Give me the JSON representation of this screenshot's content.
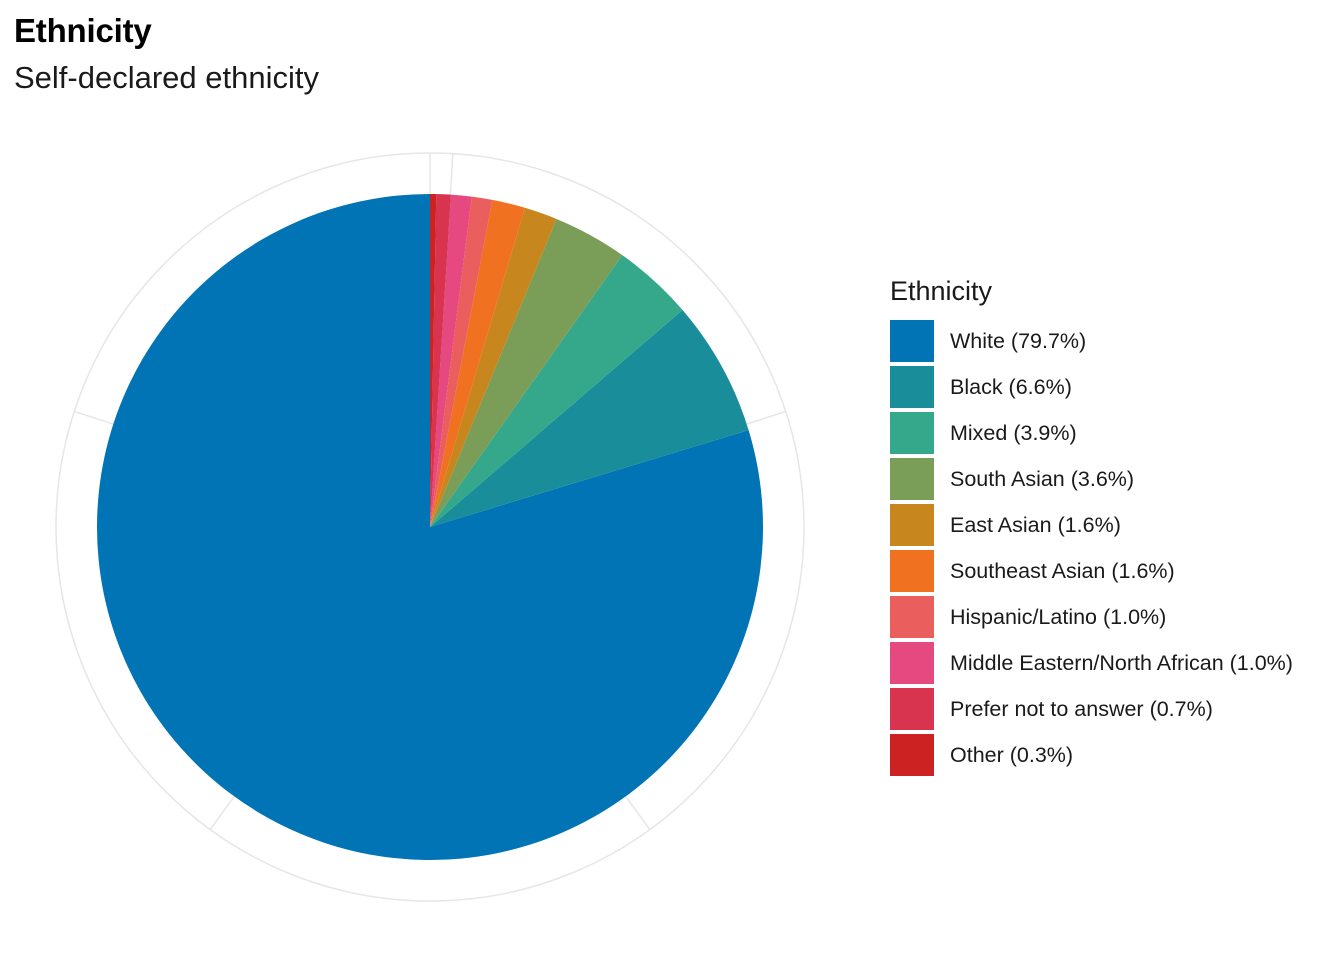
{
  "title": "Ethnicity",
  "subtitle": "Self-declared ethnicity",
  "legend_title": "Ethnicity",
  "chart_data": {
    "type": "pie",
    "title": "Ethnicity",
    "subtitle": "Self-declared ethnicity",
    "legend_title": "Ethnicity",
    "legend_position": "right",
    "start_angle": "12 o'clock",
    "direction": "counterclockwise",
    "slices": [
      {
        "label": "White (79.7%)",
        "category": "White",
        "value": 79.7,
        "color": "#0074b4"
      },
      {
        "label": "Black (6.6%)",
        "category": "Black",
        "value": 6.6,
        "color": "#1a8d9b"
      },
      {
        "label": "Mixed (3.9%)",
        "category": "Mixed",
        "value": 3.9,
        "color": "#35a88b"
      },
      {
        "label": "South Asian (3.6%)",
        "category": "South Asian",
        "value": 3.6,
        "color": "#7a9e58"
      },
      {
        "label": "East Asian (1.6%)",
        "category": "East Asian",
        "value": 1.6,
        "color": "#c8861f"
      },
      {
        "label": "Southeast Asian (1.6%)",
        "category": "Southeast Asian",
        "value": 1.6,
        "color": "#f07221"
      },
      {
        "label": "Hispanic/Latino (1.0%)",
        "category": "Hispanic/Latino",
        "value": 1.0,
        "color": "#eb5e5e"
      },
      {
        "label": "Middle Eastern/North African (1.0%)",
        "category": "Middle Eastern/North African",
        "value": 1.0,
        "color": "#e5497f"
      },
      {
        "label": "Prefer not to answer (0.7%)",
        "category": "Prefer not to answer",
        "value": 0.7,
        "color": "#d8334f"
      },
      {
        "label": "Other (0.3%)",
        "category": "Other",
        "value": 0.3,
        "color": "#cc2222"
      }
    ]
  }
}
